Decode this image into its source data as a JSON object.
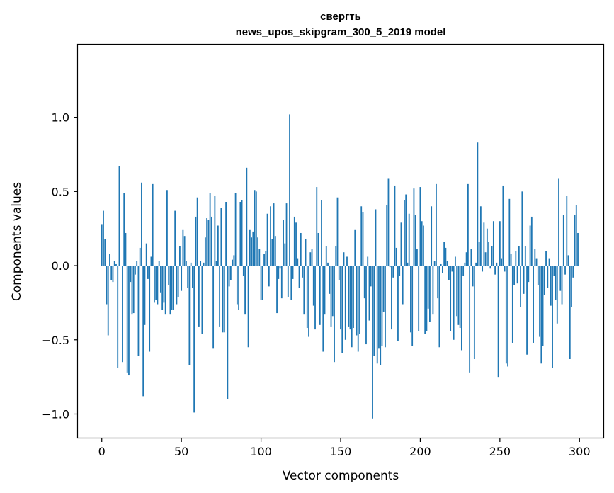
{
  "chart_data": {
    "type": "bar",
    "title": "свергть",
    "subtitle": "news_upos_skipgram_300_5_2019 model",
    "xlabel": "Vector components",
    "ylabel": "Components values",
    "xlim": [
      -15,
      315
    ],
    "ylim": [
      -1.16,
      1.49
    ],
    "xticks": [
      0,
      50,
      100,
      150,
      200,
      250,
      300
    ],
    "xtick_labels": [
      "0",
      "50",
      "100",
      "150",
      "200",
      "250",
      "300"
    ],
    "yticks": [
      -1.0,
      -0.5,
      0.0,
      0.5,
      1.0
    ],
    "ytick_labels": [
      "−1.0",
      "−0.5",
      "0.0",
      "0.5",
      "1.0"
    ],
    "bar_color": "#1f77b4",
    "grid": false,
    "values": [
      0.28,
      0.37,
      0.18,
      -0.26,
      -0.47,
      0.08,
      -0.1,
      -0.11,
      0.03,
      0.01,
      -0.69,
      0.67,
      0.0,
      -0.65,
      0.49,
      0.22,
      -0.72,
      -0.74,
      -0.11,
      -0.33,
      -0.32,
      -0.06,
      0.03,
      -0.61,
      0.12,
      0.56,
      -0.88,
      -0.4,
      0.15,
      -0.09,
      -0.58,
      0.06,
      0.55,
      -0.25,
      -0.23,
      -0.26,
      0.03,
      -0.18,
      -0.3,
      -0.25,
      -0.33,
      0.51,
      -0.13,
      -0.33,
      -0.3,
      -0.3,
      0.37,
      -0.26,
      -0.21,
      0.13,
      -0.17,
      0.24,
      0.2,
      0.03,
      -0.15,
      -0.67,
      0.02,
      -0.15,
      -0.99,
      0.33,
      0.46,
      -0.41,
      0.03,
      -0.46,
      0.02,
      0.19,
      0.32,
      0.31,
      0.49,
      0.33,
      -0.56,
      0.47,
      0.03,
      0.27,
      -0.41,
      0.39,
      -0.45,
      -0.45,
      0.43,
      -0.9,
      -0.14,
      -0.1,
      0.04,
      0.07,
      0.49,
      -0.26,
      -0.3,
      0.43,
      0.44,
      -0.07,
      -0.33,
      0.66,
      -0.55,
      0.24,
      0.19,
      0.23,
      0.51,
      0.5,
      0.19,
      0.11,
      -0.23,
      -0.23,
      0.08,
      0.1,
      0.35,
      -0.14,
      0.4,
      0.18,
      0.42,
      0.2,
      -0.32,
      -0.09,
      -0.02,
      -0.22,
      0.31,
      0.15,
      0.42,
      -0.21,
      1.02,
      -0.23,
      -0.09,
      0.33,
      0.29,
      0.05,
      -0.15,
      0.22,
      -0.08,
      -0.33,
      0.18,
      -0.42,
      -0.48,
      0.09,
      0.11,
      -0.27,
      -0.43,
      0.53,
      0.22,
      -0.4,
      0.44,
      -0.58,
      -0.33,
      0.13,
      0.02,
      -0.19,
      -0.41,
      -0.34,
      -0.65,
      0.13,
      0.46,
      -0.1,
      -0.43,
      -0.59,
      0.09,
      -0.5,
      0.06,
      -0.41,
      -0.43,
      -0.55,
      -0.42,
      0.24,
      -0.47,
      -0.58,
      -0.46,
      0.4,
      0.36,
      -0.22,
      -0.53,
      0.06,
      -0.37,
      -0.14,
      -1.03,
      -0.61,
      0.38,
      -0.66,
      -0.56,
      -0.67,
      -0.54,
      -0.31,
      -0.55,
      0.41,
      0.59,
      -0.01,
      -0.43,
      -0.08,
      0.54,
      0.12,
      -0.51,
      -0.07,
      0.29,
      -0.26,
      0.44,
      0.48,
      0.02,
      0.35,
      -0.45,
      -0.54,
      0.52,
      0.34,
      0.11,
      -0.44,
      0.53,
      0.3,
      0.27,
      -0.46,
      -0.44,
      -0.29,
      -0.38,
      0.4,
      -0.33,
      0.03,
      0.55,
      -0.22,
      -0.55,
      0.01,
      -0.05,
      0.16,
      0.12,
      0.03,
      -0.1,
      -0.44,
      -0.04,
      -0.5,
      0.06,
      -0.34,
      -0.4,
      -0.42,
      -0.57,
      -0.07,
      0.02,
      0.09,
      0.55,
      -0.72,
      0.11,
      -0.14,
      -0.63,
      0.02,
      0.83,
      0.16,
      0.4,
      -0.04,
      0.29,
      0.09,
      0.25,
      0.16,
      -0.02,
      0.13,
      0.3,
      -0.06,
      0.02,
      -0.75,
      0.3,
      0.05,
      0.54,
      -0.04,
      -0.66,
      -0.68,
      0.45,
      0.08,
      -0.52,
      -0.13,
      0.1,
      -0.12,
      0.13,
      -0.28,
      0.5,
      -0.19,
      0.13,
      -0.6,
      -0.11,
      0.27,
      0.33,
      -0.52,
      0.11,
      0.05,
      -0.13,
      -0.48,
      -0.66,
      -0.54,
      -0.2,
      0.1,
      -0.15,
      0.05,
      -0.27,
      -0.69,
      -0.07,
      -0.23,
      -0.39,
      0.59,
      -0.17,
      -0.26,
      0.34,
      -0.06,
      0.47,
      0.07,
      -0.63,
      -0.28,
      -0.08,
      0.34,
      0.41,
      0.22
    ]
  }
}
